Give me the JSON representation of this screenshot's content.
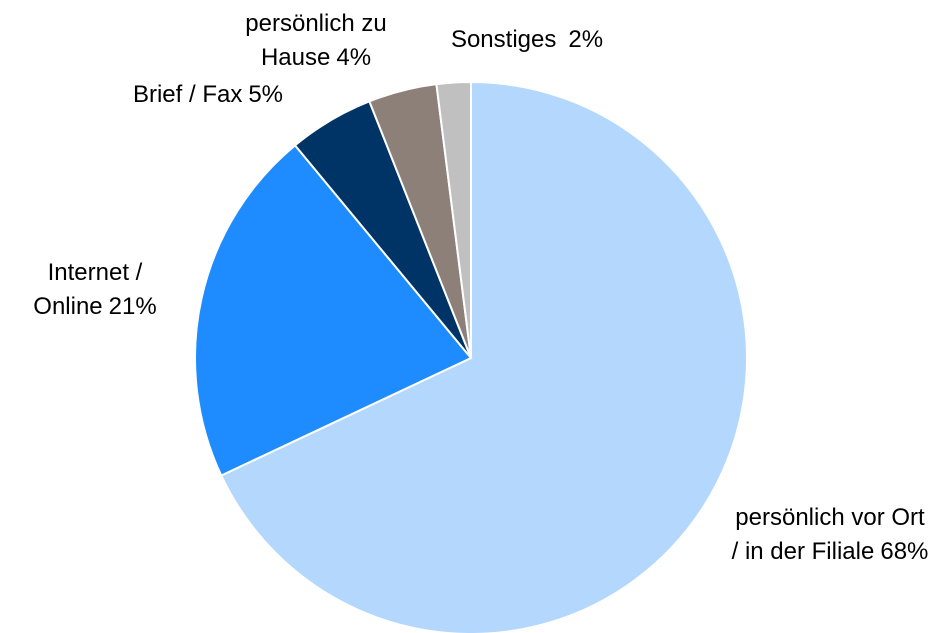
{
  "chart_data": {
    "type": "pie",
    "categories": [
      "persönlich vor Ort / in der Filiale",
      "Internet / Online",
      "Brief / Fax",
      "persönlich zu Hause",
      "Sonstiges"
    ],
    "values": [
      68,
      21,
      5,
      4,
      2
    ],
    "value_labels": [
      "68%",
      "21%",
      "5%",
      "4%",
      "2%"
    ],
    "colors": [
      "#b4d7fe",
      "#1e8cfe",
      "#003366",
      "#8c8079",
      "#c0c0c0"
    ]
  }
}
